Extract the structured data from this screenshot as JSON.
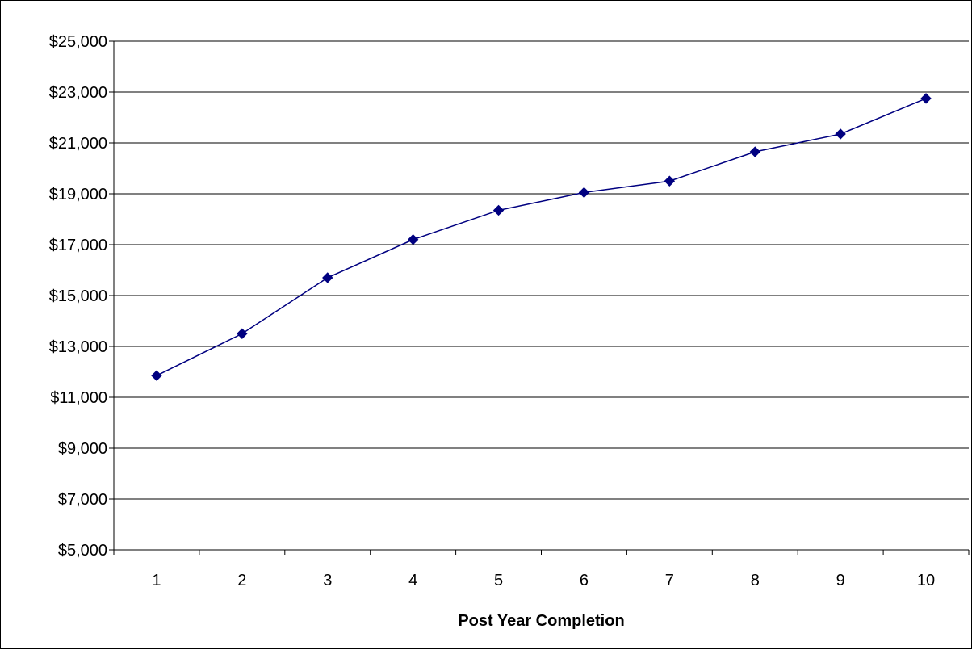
{
  "chart_data": {
    "type": "line",
    "title": "",
    "xlabel": "Post Year Completion",
    "ylabel": "",
    "categories": [
      "1",
      "2",
      "3",
      "4",
      "5",
      "6",
      "7",
      "8",
      "9",
      "10"
    ],
    "series": [
      {
        "values": [
          11850,
          13500,
          15700,
          17200,
          18350,
          19050,
          19500,
          20650,
          21350,
          22750
        ],
        "color": "#000080",
        "marker": "diamond"
      }
    ],
    "ylim": [
      5000,
      25000
    ],
    "yticks": [
      5000,
      7000,
      9000,
      11000,
      13000,
      15000,
      17000,
      19000,
      21000,
      23000,
      25000
    ],
    "ytick_labels": [
      "$5,000",
      "$7,000",
      "$9,000",
      "$11,000",
      "$13,000",
      "$15,000",
      "$17,000",
      "$19,000",
      "$21,000",
      "$23,000",
      "$25,000"
    ],
    "grid": true,
    "legend": "none"
  }
}
